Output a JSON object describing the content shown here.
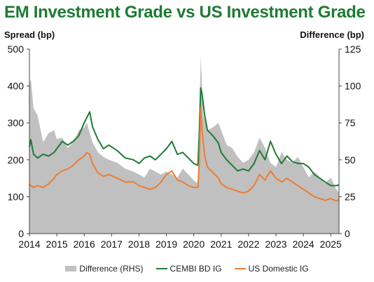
{
  "title": "EM Investment Grade vs US Investment Grade",
  "left_axis_title": "Spread (bp)",
  "right_axis_title": "Difference (bp)",
  "colors": {
    "title": "#1e7b34",
    "cembi": "#1e7b34",
    "us": "#ed7d31",
    "diff": "#c0c0c0"
  },
  "chart_data": {
    "type": "line",
    "xlim": [
      2014.0,
      2025.3
    ],
    "ylim_left": [
      0,
      500
    ],
    "ylim_right": [
      0,
      125
    ],
    "yticks_left": [
      "0",
      "100",
      "200",
      "300",
      "400",
      "500"
    ],
    "yticks_right": [
      "0",
      "25",
      "50",
      "75",
      "100",
      "125"
    ],
    "xticks": [
      "2014",
      "2015",
      "2016",
      "2017",
      "2018",
      "2019",
      "2020",
      "2021",
      "2022",
      "2023",
      "2024",
      "2025"
    ],
    "series": [
      {
        "name": "Difference (RHS)",
        "axis": "right",
        "kind": "area",
        "x": [
          2014.0,
          2014.05,
          2014.15,
          2014.3,
          2014.5,
          2014.7,
          2014.9,
          2015.0,
          2015.2,
          2015.4,
          2015.6,
          2015.8,
          2016.0,
          2016.1,
          2016.3,
          2016.5,
          2016.7,
          2016.9,
          2017.2,
          2017.5,
          2017.8,
          2018.0,
          2018.2,
          2018.4,
          2018.6,
          2018.8,
          2019.0,
          2019.2,
          2019.4,
          2019.6,
          2019.8,
          2020.0,
          2020.15,
          2020.2,
          2020.25,
          2020.35,
          2020.5,
          2020.7,
          2020.9,
          2021.0,
          2021.2,
          2021.4,
          2021.6,
          2021.8,
          2022.0,
          2022.2,
          2022.4,
          2022.6,
          2022.8,
          2023.0,
          2023.2,
          2023.4,
          2023.6,
          2023.8,
          2024.0,
          2024.2,
          2024.4,
          2024.6,
          2024.8,
          2025.0,
          2025.2,
          2025.3
        ],
        "values": [
          100,
          105,
          85,
          80,
          62,
          68,
          70,
          64,
          65,
          58,
          62,
          70,
          72,
          75,
          62,
          55,
          52,
          50,
          48,
          44,
          42,
          40,
          38,
          44,
          42,
          40,
          42,
          40,
          38,
          44,
          40,
          36,
          34,
          75,
          120,
          80,
          70,
          72,
          75,
          70,
          60,
          58,
          52,
          48,
          50,
          55,
          65,
          58,
          48,
          45,
          55,
          50,
          48,
          52,
          45,
          38,
          42,
          38,
          34,
          38,
          30,
          28
        ]
      },
      {
        "name": "CEMBI BD IG",
        "axis": "left",
        "kind": "line",
        "x": [
          2014.0,
          2014.05,
          2014.15,
          2014.3,
          2014.5,
          2014.7,
          2014.9,
          2015.0,
          2015.2,
          2015.4,
          2015.6,
          2015.8,
          2016.0,
          2016.1,
          2016.2,
          2016.3,
          2016.5,
          2016.7,
          2016.9,
          2017.2,
          2017.5,
          2017.8,
          2018.0,
          2018.2,
          2018.4,
          2018.6,
          2018.8,
          2019.0,
          2019.2,
          2019.4,
          2019.6,
          2019.8,
          2020.0,
          2020.15,
          2020.2,
          2020.25,
          2020.3,
          2020.4,
          2020.5,
          2020.7,
          2020.9,
          2021.0,
          2021.2,
          2021.4,
          2021.6,
          2021.8,
          2022.0,
          2022.2,
          2022.4,
          2022.6,
          2022.8,
          2023.0,
          2023.2,
          2023.4,
          2023.6,
          2023.8,
          2024.0,
          2024.2,
          2024.4,
          2024.6,
          2024.8,
          2025.0,
          2025.2,
          2025.3
        ],
        "values": [
          235,
          255,
          215,
          205,
          215,
          210,
          220,
          230,
          250,
          240,
          250,
          265,
          300,
          315,
          330,
          290,
          255,
          230,
          240,
          225,
          205,
          200,
          190,
          205,
          210,
          200,
          215,
          230,
          250,
          215,
          220,
          205,
          190,
          185,
          270,
          395,
          380,
          320,
          280,
          265,
          245,
          220,
          200,
          185,
          170,
          175,
          170,
          190,
          225,
          200,
          250,
          215,
          190,
          210,
          195,
          190,
          190,
          180,
          160,
          150,
          140,
          130,
          130,
          132
        ]
      },
      {
        "name": "US Domestic IG",
        "axis": "left",
        "kind": "line",
        "x": [
          2014.0,
          2014.05,
          2014.15,
          2014.3,
          2014.5,
          2014.7,
          2014.9,
          2015.0,
          2015.2,
          2015.4,
          2015.6,
          2015.8,
          2016.0,
          2016.1,
          2016.2,
          2016.3,
          2016.5,
          2016.7,
          2016.9,
          2017.2,
          2017.5,
          2017.8,
          2018.0,
          2018.2,
          2018.4,
          2018.6,
          2018.8,
          2019.0,
          2019.2,
          2019.4,
          2019.6,
          2019.8,
          2020.0,
          2020.15,
          2020.2,
          2020.25,
          2020.3,
          2020.4,
          2020.5,
          2020.7,
          2020.9,
          2021.0,
          2021.2,
          2021.4,
          2021.6,
          2021.8,
          2022.0,
          2022.2,
          2022.4,
          2022.6,
          2022.8,
          2023.0,
          2023.2,
          2023.4,
          2023.6,
          2023.8,
          2024.0,
          2024.2,
          2024.4,
          2024.6,
          2024.8,
          2025.0,
          2025.2,
          2025.3
        ],
        "values": [
          135,
          130,
          125,
          130,
          125,
          135,
          150,
          160,
          170,
          175,
          185,
          200,
          210,
          220,
          215,
          190,
          165,
          155,
          160,
          150,
          140,
          140,
          130,
          125,
          120,
          125,
          140,
          160,
          170,
          145,
          140,
          130,
          125,
          125,
          195,
          340,
          280,
          210,
          180,
          165,
          150,
          135,
          125,
          120,
          115,
          110,
          115,
          130,
          160,
          145,
          170,
          150,
          140,
          150,
          140,
          130,
          120,
          110,
          100,
          95,
          90,
          95,
          88,
          92
        ]
      }
    ],
    "legend_position": "bottom"
  }
}
